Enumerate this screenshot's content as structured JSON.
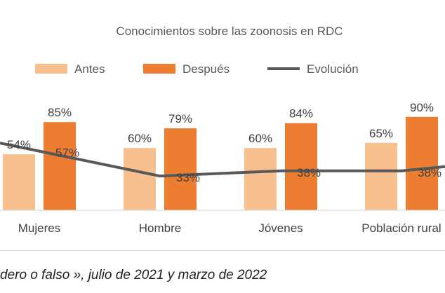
{
  "chart_data": {
    "type": "bar",
    "title": "Conocimientos sobre las zoonosis en RDC",
    "categories": [
      "Mujeres",
      "Hombre",
      "Jóvenes",
      "Población rural"
    ],
    "series": [
      {
        "name": "Antes",
        "kind": "bar",
        "color": "#F8C08E",
        "values": [
          54,
          60,
          60,
          65
        ],
        "labels": [
          "54%",
          "60%",
          "60%",
          "65%"
        ]
      },
      {
        "name": "Después",
        "kind": "bar",
        "color": "#ED7D31",
        "values": [
          85,
          79,
          84,
          90
        ],
        "labels": [
          "85%",
          "79%",
          "84%",
          "90%"
        ]
      },
      {
        "name": "Evolución",
        "kind": "line",
        "color": "#595959",
        "values": [
          57,
          33,
          38,
          38
        ],
        "labels": [
          "57%",
          "33%",
          "38%",
          "38%"
        ]
      }
    ],
    "legend_position": "top",
    "grid": false
  },
  "caption": "dero o falso », julio de 2021 y marzo de 2022"
}
